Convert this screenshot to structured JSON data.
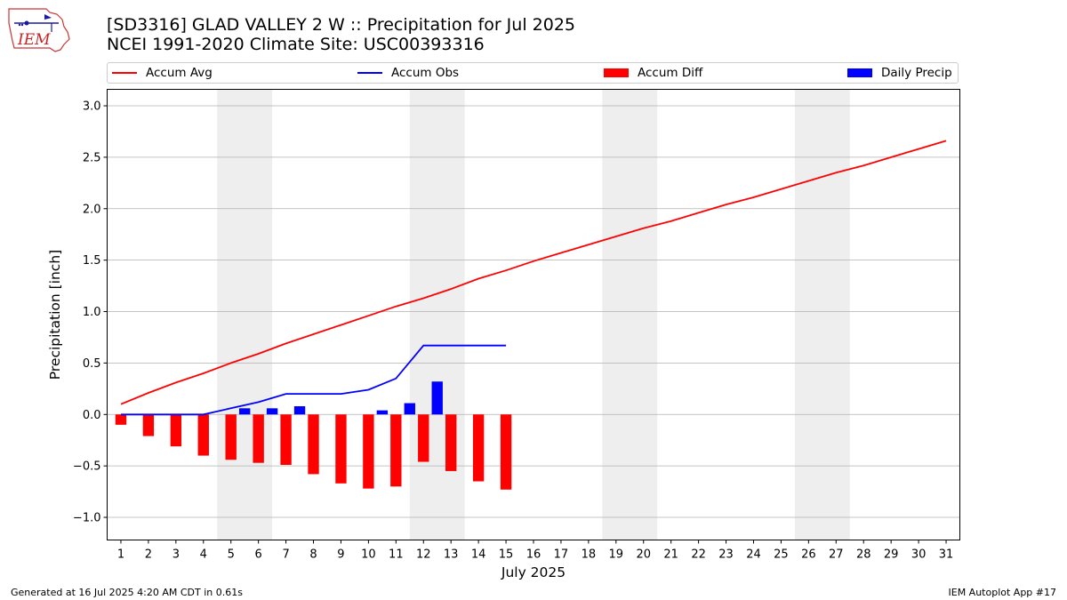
{
  "header": {
    "logo_text": "IEM",
    "title_line1": "[SD3316] GLAD VALLEY 2 W :: Precipitation for Jul 2025",
    "title_line2": "NCEI 1991-2020 Climate Site: USC00393316"
  },
  "footer": {
    "left": "Generated at 16 Jul 2025 4:20 AM CDT in 0.61s",
    "right": "IEM Autoplot App #17"
  },
  "colors": {
    "accum_avg": "#ff0000",
    "accum_obs": "#0000ff",
    "accum_diff": "#ff0000",
    "daily_precip": "#0000ff",
    "weekend_shade": "#eeeeee",
    "grid": "#b0b0b0"
  },
  "chart_data": {
    "type": "bar",
    "xlabel": "July 2025",
    "ylabel": "Precipitation [inch]",
    "ylim": [
      -1.22,
      3.16
    ],
    "yticks": [
      -1.0,
      -0.5,
      0.0,
      0.5,
      1.0,
      1.5,
      2.0,
      2.5,
      3.0
    ],
    "ytick_labels": [
      "−1.0",
      "−0.5",
      "0.0",
      "0.5",
      "1.0",
      "1.5",
      "2.0",
      "2.5",
      "3.0"
    ],
    "xlim": [
      0.5,
      31.5
    ],
    "days": [
      1,
      2,
      3,
      4,
      5,
      6,
      7,
      8,
      9,
      10,
      11,
      12,
      13,
      14,
      15,
      16,
      17,
      18,
      19,
      20,
      21,
      22,
      23,
      24,
      25,
      26,
      27,
      28,
      29,
      30,
      31
    ],
    "weekend_spans": [
      [
        4.5,
        6.5
      ],
      [
        11.5,
        13.5
      ],
      [
        18.5,
        20.5
      ],
      [
        25.5,
        27.5
      ]
    ],
    "grid": "horizontal",
    "legend_position": "top",
    "series": [
      {
        "name": "Accum Avg",
        "kind": "line",
        "x": [
          1,
          2,
          3,
          4,
          5,
          6,
          7,
          8,
          9,
          10,
          11,
          12,
          13,
          14,
          15,
          16,
          17,
          18,
          19,
          20,
          21,
          22,
          23,
          24,
          25,
          26,
          27,
          28,
          29,
          30,
          31
        ],
        "values": [
          0.1,
          0.21,
          0.31,
          0.4,
          0.5,
          0.59,
          0.69,
          0.78,
          0.87,
          0.96,
          1.05,
          1.13,
          1.22,
          1.32,
          1.4,
          1.49,
          1.57,
          1.65,
          1.73,
          1.81,
          1.88,
          1.96,
          2.04,
          2.11,
          2.19,
          2.27,
          2.35,
          2.42,
          2.5,
          2.58,
          2.66
        ]
      },
      {
        "name": "Accum Obs",
        "kind": "line",
        "x": [
          1,
          2,
          3,
          4,
          5,
          6,
          7,
          8,
          9,
          10,
          11,
          12,
          13,
          14,
          15
        ],
        "values": [
          0.0,
          0.0,
          0.0,
          0.0,
          0.06,
          0.12,
          0.2,
          0.2,
          0.2,
          0.24,
          0.35,
          0.67,
          0.67,
          0.67,
          0.67
        ]
      },
      {
        "name": "Accum Diff",
        "kind": "bar",
        "x": [
          1,
          2,
          3,
          4,
          5,
          6,
          7,
          8,
          9,
          10,
          11,
          12,
          13,
          14,
          15
        ],
        "values": [
          -0.1,
          -0.21,
          -0.31,
          -0.4,
          -0.44,
          -0.47,
          -0.49,
          -0.58,
          -0.67,
          -0.72,
          -0.7,
          -0.46,
          -0.55,
          -0.65,
          -0.73
        ]
      },
      {
        "name": "Daily Precip",
        "kind": "bar",
        "x": [
          5,
          6,
          7,
          10,
          11,
          12
        ],
        "values": [
          0.06,
          0.06,
          0.08,
          0.04,
          0.11,
          0.32
        ]
      }
    ]
  }
}
